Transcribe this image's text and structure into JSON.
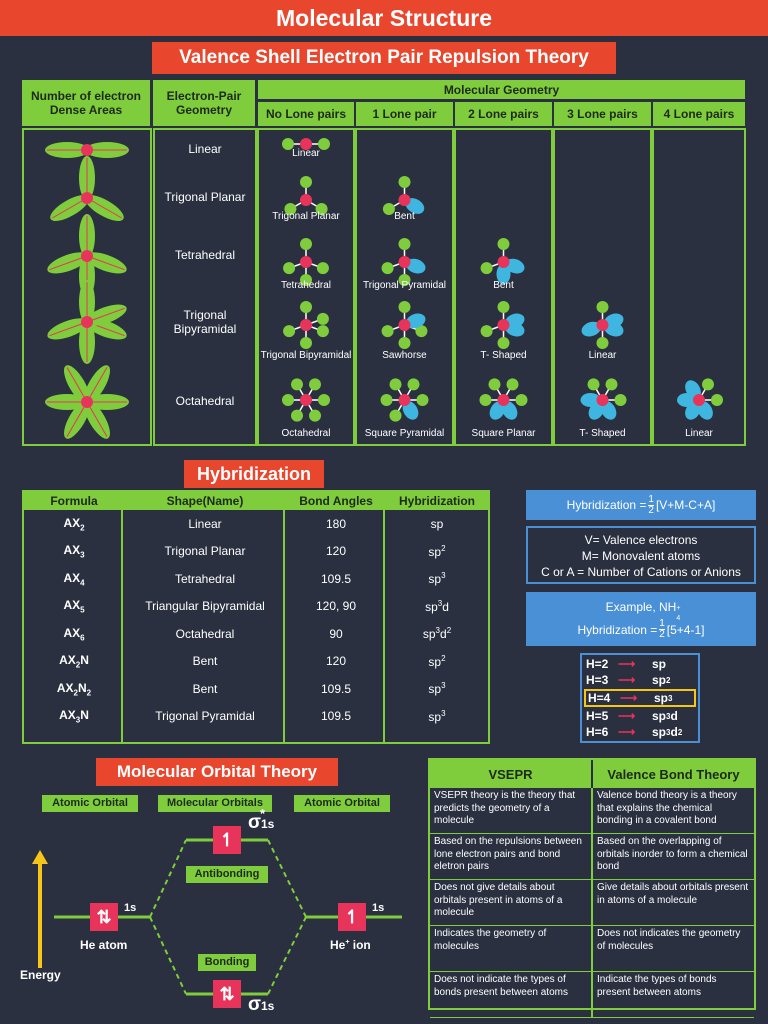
{
  "title": "Molecular Structure",
  "vsepr": {
    "title": "Valence Shell Electron Pair Repulsion Theory",
    "col_dense": "Number of electron Dense Areas",
    "col_epg": "Electron-Pair Geometry",
    "col_mg": "Molecular Geometry",
    "lone_pairs": [
      "No Lone pairs",
      "1 Lone pair",
      "2 Lone pairs",
      "3 Lone pairs",
      "4 Lone pairs"
    ],
    "rows": [
      {
        "epg": "Linear",
        "shapes": [
          "Linear",
          "",
          "",
          "",
          ""
        ]
      },
      {
        "epg": "Trigonal Planar",
        "shapes": [
          "Trigonal Planar",
          "Bent",
          "",
          "",
          ""
        ]
      },
      {
        "epg": "Tetrahedral",
        "shapes": [
          "Tetrahedral",
          "Trigonal Pyramidal",
          "Bent",
          "",
          ""
        ]
      },
      {
        "epg": "Trigonal Bipyramidal",
        "shapes": [
          "Trigonal Bipyramidal",
          "Sawhorse",
          "T- Shaped",
          "Linear",
          ""
        ]
      },
      {
        "epg": "Octahedral",
        "shapes": [
          "Octahedral",
          "Square Pyramidal",
          "Square Planar",
          "T- Shaped",
          "Linear"
        ]
      }
    ]
  },
  "hybridization": {
    "title": "Hybridization",
    "headers": [
      "Formula",
      "Shape(Name)",
      "Bond Angles",
      "Hybridization"
    ],
    "rows": [
      {
        "f": "AX",
        "fs": "2",
        "f2": "",
        "f2s": "",
        "f3": "",
        "shape": "Linear",
        "angle": "180",
        "hyb": "sp",
        "hs": "",
        "hd": "",
        "hds": ""
      },
      {
        "f": "AX",
        "fs": "3",
        "f2": "",
        "f2s": "",
        "f3": "",
        "shape": "Trigonal Planar",
        "angle": "120",
        "hyb": "sp",
        "hs": "2",
        "hd": "",
        "hds": ""
      },
      {
        "f": "AX",
        "fs": "4",
        "f2": "",
        "f2s": "",
        "f3": "",
        "shape": "Tetrahedral",
        "angle": "109.5",
        "hyb": "sp",
        "hs": "3",
        "hd": "",
        "hds": ""
      },
      {
        "f": "AX",
        "fs": "5",
        "f2": "",
        "f2s": "",
        "f3": "",
        "shape": "Triangular Bipyramidal",
        "angle": "120, 90",
        "hyb": "sp",
        "hs": "3",
        "hd": "d",
        "hds": ""
      },
      {
        "f": "AX",
        "fs": "6",
        "f2": "",
        "f2s": "",
        "f3": "",
        "shape": "Octahedral",
        "angle": "90",
        "hyb": "sp",
        "hs": "3",
        "hd": "d",
        "hds": "2"
      },
      {
        "f": "AX",
        "fs": "2",
        "f2": "N",
        "f2s": "",
        "f3": "",
        "shape": "Bent",
        "angle": "120",
        "hyb": "sp",
        "hs": "2",
        "hd": "",
        "hds": ""
      },
      {
        "f": "AX",
        "fs": "2",
        "f2": "N",
        "f2s": "2",
        "f3": "",
        "shape": "Bent",
        "angle": "109.5",
        "hyb": "sp",
        "hs": "3",
        "hd": "",
        "hds": ""
      },
      {
        "f": "AX",
        "fs": "3",
        "f2": "N",
        "f2s": "",
        "f3": "",
        "shape": "Trigonal Pyramidal",
        "angle": "109.5",
        "hyb": "sp",
        "hs": "3",
        "hd": "",
        "hds": ""
      }
    ],
    "formula": {
      "lhs": "Hybridization = ",
      "num": "1",
      "den": "2",
      "rhs": "[V+M-C+A]"
    },
    "legend": [
      "V= Valence electrons",
      "M= Monovalent atoms",
      "C or A = Number of Cations or Anions"
    ],
    "example": {
      "label": "Example, NH",
      "sub": "4",
      "sup": "+",
      "lhs": "Hybridization = ",
      "num": "1",
      "den": "2",
      "rhs": "[5+4-1]"
    },
    "map": [
      {
        "h": "H=2",
        "sp": "sp",
        "s": "",
        "d": "",
        "ds": ""
      },
      {
        "h": "H=3",
        "sp": "sp",
        "s": "2",
        "d": "",
        "ds": ""
      },
      {
        "h": "H=4",
        "sp": "sp",
        "s": "3",
        "d": "",
        "ds": ""
      },
      {
        "h": "H=5",
        "sp": "sp",
        "s": "3",
        "d": "d",
        "ds": ""
      },
      {
        "h": "H=6",
        "sp": "sp",
        "s": "3",
        "d": "d",
        "ds": "2"
      }
    ]
  },
  "mo": {
    "title": "Molecular Orbital Theory",
    "atomic_orbital": "Atomic Orbital",
    "molecular_orbitals": "Molecular Orbitals",
    "antibonding": "Antibonding",
    "bonding": "Bonding",
    "energy": "Energy",
    "he_atom": "He atom",
    "he_ion": "He",
    "he_ion_sup": "+",
    "he_ion_rest": " ion",
    "one_s": "1s",
    "sigma": "σ",
    "sigma_sub": "1s",
    "star": "*"
  },
  "compare": {
    "headers": [
      "VSEPR",
      "Valence Bond Theory"
    ],
    "rows": [
      [
        "VSEPR theory is the theory that predicts the geometry of a molecule",
        "Valence bond theory is a theory that explains the chemical bonding in a covalent bond"
      ],
      [
        "Based on the repulsions between lone electron pairs and bond eletron pairs",
        "Based on the overlapping of orbitals inorder to form a chemical bond"
      ],
      [
        "Does not give details about orbitals present in atoms of a molecule",
        "Give details about orbitals present in atoms of a molecule"
      ],
      [
        "Indicates the geometry of molecules",
        "Does not indicates the geometry of molecules"
      ],
      [
        "Does not indicate the types of bonds present between atoms",
        "Indicate the types of bonds present between atoms"
      ]
    ]
  },
  "colors": {
    "accent": "#e8472e",
    "green": "#7fcc3d",
    "blue": "#4a90d6",
    "bg": "#2a3040",
    "atom": "#e8345a",
    "lone": "#3fb6e0"
  }
}
